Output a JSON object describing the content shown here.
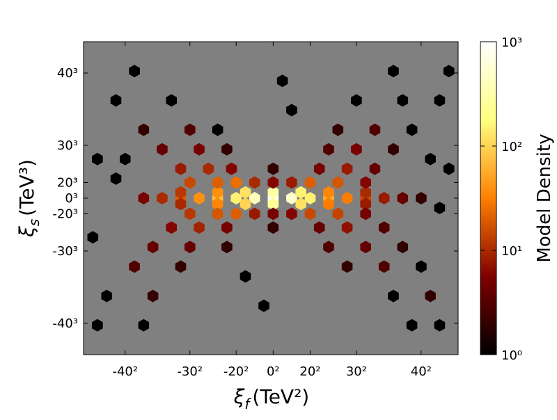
{
  "chart_data": {
    "type": "hexbin",
    "xlabel": [
      "ξ",
      "f",
      "(TeV²)"
    ],
    "ylabel": [
      "ξ",
      "s",
      "(TeV³)"
    ],
    "colorbar_label": "Model Density",
    "colormap": "afmhot",
    "background": "#808080",
    "xlim": [
      -2050,
      2000
    ],
    "ylim": [
      -80000,
      80000
    ],
    "xticks": [
      {
        "value": -1600,
        "label": "-40²"
      },
      {
        "value": -900,
        "label": "-30²"
      },
      {
        "value": -400,
        "label": "-20²"
      },
      {
        "value": 0,
        "label": "0²"
      },
      {
        "value": 400,
        "label": "20²"
      },
      {
        "value": 900,
        "label": "30²"
      },
      {
        "value": 1600,
        "label": "40²"
      }
    ],
    "yticks": [
      {
        "value": -64000,
        "label": "-40³"
      },
      {
        "value": -27000,
        "label": "-30³"
      },
      {
        "value": -8000,
        "label": "-20³"
      },
      {
        "value": 0,
        "label": "0³"
      },
      {
        "value": 8000,
        "label": "20³"
      },
      {
        "value": 27000,
        "label": "30³"
      },
      {
        "value": 64000,
        "label": "40³"
      }
    ],
    "clim": [
      1,
      1000
    ],
    "clog": true,
    "cticks": [
      {
        "value": 1,
        "label": "10⁰"
      },
      {
        "value": 10,
        "label": "10¹"
      },
      {
        "value": 100,
        "label": "10²"
      },
      {
        "value": 1000,
        "label": "10³"
      }
    ],
    "x": [
      -1400,
      -1200,
      -1000,
      -800,
      -600,
      -400,
      -200,
      0,
      200,
      400,
      600,
      800,
      1000,
      1200,
      1400,
      1600,
      -1000,
      -600,
      -300,
      0,
      300,
      600,
      1000,
      -1000,
      -600,
      -300,
      0,
      300,
      600,
      1000,
      -900,
      -600,
      -400,
      -200,
      0,
      200,
      400,
      700,
      1000,
      -900,
      -600,
      -400,
      -200,
      0,
      200,
      400,
      700,
      1000,
      -1000,
      -700,
      -450,
      0,
      500,
      800,
      1100,
      -1100,
      -800,
      -500,
      0,
      500,
      800,
      1200,
      -1200,
      -800,
      -500,
      600,
      900,
      1300,
      -1300,
      -900,
      -500,
      600,
      1000,
      1400,
      -1400,
      -900,
      -600,
      700,
      1100,
      1500,
      -1500,
      -1000,
      800,
      1200,
      1600,
      -1700,
      -1100,
      900,
      1400,
      1800,
      -1800,
      -1300,
      1300,
      1700,
      -1500,
      1300,
      1900,
      -1900,
      -1400,
      1500,
      1800,
      -1600,
      1700,
      -1900,
      -1700,
      1800,
      -1950,
      1900,
      200,
      -300,
      100,
      -100
    ],
    "y": [
      0,
      0,
      0,
      0,
      0,
      0,
      0,
      0,
      0,
      0,
      0,
      0,
      0,
      0,
      0,
      0,
      3000,
      3000,
      3000,
      3000,
      3000,
      3000,
      3000,
      -3000,
      -3000,
      -3000,
      -3000,
      -3000,
      -3000,
      -3000,
      8000,
      8000,
      8000,
      8000,
      8000,
      8000,
      8000,
      8000,
      8000,
      -8000,
      -8000,
      -8000,
      -8000,
      -8000,
      -8000,
      -8000,
      -8000,
      -8000,
      15000,
      15000,
      15000,
      15000,
      15000,
      15000,
      15000,
      -15000,
      -15000,
      -15000,
      -15000,
      -15000,
      -15000,
      -15000,
      25000,
      25000,
      25000,
      25000,
      25000,
      25000,
      -25000,
      -25000,
      -25000,
      -25000,
      -25000,
      -25000,
      35000,
      35000,
      35000,
      35000,
      35000,
      35000,
      -35000,
      -35000,
      -35000,
      -35000,
      -35000,
      50000,
      50000,
      50000,
      50000,
      50000,
      -50000,
      -50000,
      -50000,
      -50000,
      65000,
      65000,
      65000,
      -65000,
      -65000,
      -65000,
      -65000,
      20000,
      20000,
      20000,
      10000,
      -5000,
      -20000,
      15000,
      45000,
      -40000,
      60000,
      -55000
    ],
    "counts": [
      5,
      10,
      20,
      40,
      80,
      150,
      400,
      1000,
      500,
      150,
      60,
      30,
      15,
      8,
      4,
      2,
      12,
      40,
      120,
      300,
      150,
      35,
      10,
      10,
      35,
      100,
      250,
      120,
      30,
      8,
      15,
      20,
      25,
      10,
      6,
      8,
      20,
      18,
      6,
      12,
      18,
      20,
      8,
      5,
      6,
      15,
      14,
      5,
      8,
      10,
      6,
      2,
      5,
      8,
      4,
      6,
      9,
      5,
      2,
      4,
      7,
      3,
      4,
      5,
      2,
      3,
      5,
      2,
      4,
      4,
      2,
      3,
      4,
      2,
      2,
      3,
      1,
      2,
      3,
      1,
      3,
      2,
      2,
      3,
      1,
      1,
      1,
      1,
      1,
      1,
      1,
      2,
      1,
      2,
      1,
      1,
      1,
      1,
      1,
      1,
      1,
      1,
      1,
      1,
      1,
      1,
      1,
      1,
      1,
      1,
      1,
      1
    ]
  }
}
